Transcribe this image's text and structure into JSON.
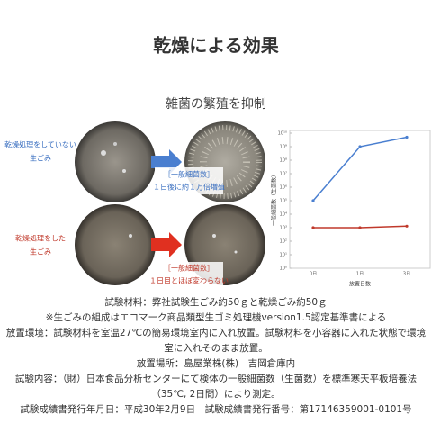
{
  "title": "乾燥による効果",
  "subtitle": "雑菌の繁殖を抑制",
  "panels": [
    {
      "label": [
        "乾燥処理をしていない",
        "生ごみ"
      ],
      "caption": [
        "［一般細菌数］",
        "１日後に約１万倍増殖"
      ]
    },
    {
      "label": [
        "乾燥処理をした",
        "生ごみ"
      ],
      "caption": [
        "［一般細菌数］",
        "１日目とほぼ変わらない"
      ]
    }
  ],
  "chart_data": {
    "type": "line",
    "log_scale": true,
    "grid": false,
    "y_label": "一般細菌数（生菌数）",
    "x_label": "放置日数",
    "categories": [
      "0日",
      "1日",
      "3日"
    ],
    "series": [
      {
        "color": "#4a7fd0",
        "values": [
          100000,
          1000000000,
          5000000000
        ]
      },
      {
        "color": "#c0392b",
        "values": [
          1000,
          1000,
          1300
        ]
      }
    ],
    "ylim": [
      1,
      10000000000
    ],
    "yticks": [
      {
        "value": 1,
        "label": "10⁰"
      },
      {
        "value": 10,
        "label": "10¹"
      },
      {
        "value": 100,
        "label": "10²"
      },
      {
        "value": 1000,
        "label": "10³"
      },
      {
        "value": 10000,
        "label": "10⁴"
      },
      {
        "value": 100000,
        "label": "10⁵"
      },
      {
        "value": 1000000,
        "label": "10⁶"
      },
      {
        "value": 10000000,
        "label": "10⁷"
      },
      {
        "value": 100000000,
        "label": "10⁸"
      },
      {
        "value": 1000000000,
        "label": "10⁹"
      },
      {
        "value": 10000000000,
        "label": "10¹⁰"
      }
    ]
  },
  "notes": [
    "試験材料：弊社試験生ごみ約50ｇと乾燥ごみ約50ｇ",
    "※生ごみの組成はエコマーク商品類型生ゴミ処理機version1.5認定基準書による",
    "放置環境：試験材料を室温27℃の簡易環境室内に入れ放置。試験材料を小容器に入れた状態で環境室に入れそのまま放置。",
    "放置場所：島屋業株(株)　吉岡倉庫内",
    "試験内容：（財）日本食品分析センターにて検体の一般細菌数（生菌数）を標準寒天平板培養法（35℃, 2日間）により測定。",
    "試験成績書発行年月日：平成30年2月9日　試験成績書発行番号：第17146359001-0101号"
  ]
}
